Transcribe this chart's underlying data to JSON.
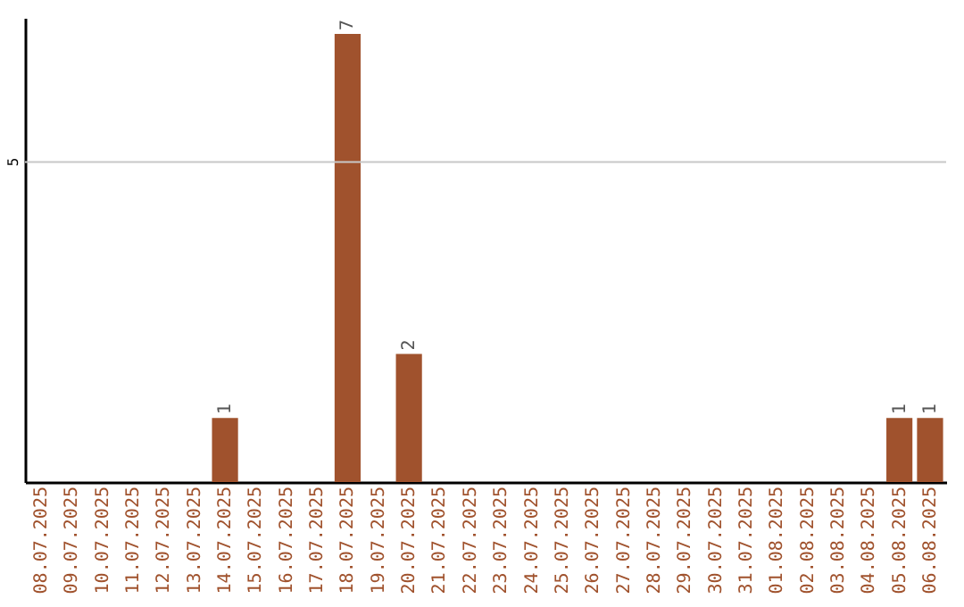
{
  "chart_data": {
    "type": "bar",
    "categories": [
      "08.07.2025",
      "09.07.2025",
      "10.07.2025",
      "11.07.2025",
      "12.07.2025",
      "13.07.2025",
      "14.07.2025",
      "15.07.2025",
      "16.07.2025",
      "17.07.2025",
      "18.07.2025",
      "19.07.2025",
      "20.07.2025",
      "21.07.2025",
      "22.07.2025",
      "23.07.2025",
      "24.07.2025",
      "25.07.2025",
      "26.07.2025",
      "27.07.2025",
      "28.07.2025",
      "29.07.2025",
      "30.07.2025",
      "31.07.2025",
      "01.08.2025",
      "02.08.2025",
      "03.08.2025",
      "04.08.2025",
      "05.08.2025",
      "06.08.2025"
    ],
    "values": [
      0,
      0,
      0,
      0,
      0,
      0,
      1,
      0,
      0,
      0,
      7,
      0,
      2,
      0,
      0,
      0,
      0,
      0,
      0,
      0,
      0,
      0,
      0,
      0,
      0,
      0,
      0,
      0,
      1,
      1
    ],
    "value_labels": [
      null,
      null,
      null,
      null,
      null,
      null,
      "1",
      null,
      null,
      null,
      "7",
      null,
      "2",
      null,
      null,
      null,
      null,
      null,
      null,
      null,
      null,
      null,
      null,
      null,
      null,
      null,
      null,
      null,
      "1",
      "1"
    ],
    "color": "#a0522d",
    "ylim": [
      0,
      7.25
    ],
    "ref_lines": [
      {
        "axis": "y",
        "value": 5,
        "label": "5",
        "color": "#c8c8c8"
      }
    ]
  }
}
